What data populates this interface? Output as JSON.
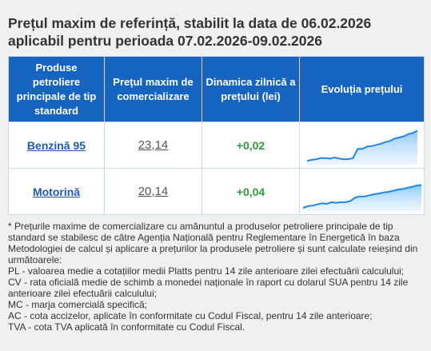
{
  "header": {
    "title_line1": "Prețul maxim de referință, stabilit la data de 06.02.2026",
    "title_line2": "aplicabil pentru perioada 07.02.2026-09.02.2026"
  },
  "table": {
    "columns": [
      "Produse petroliere principale de tip standard",
      "Prețul maxim de comercializare",
      "Dinamica zilnică a prețului (lei)",
      "Evoluția prețului"
    ],
    "rows": [
      {
        "product": "Benzină 95",
        "price": "23,14",
        "dynamic": "+0,02"
      },
      {
        "product": "Motorină",
        "price": "20,14",
        "dynamic": "+0,04"
      }
    ]
  },
  "colors": {
    "header_bg": "#1565c0",
    "positive": "#2e9d3a",
    "link": "#1f5aa8",
    "line": "#1e88e5"
  },
  "chart_data": [
    {
      "type": "area",
      "name": "Benzină 95",
      "values": [
        0.5,
        1.5,
        2,
        3,
        3,
        2.5,
        3.5,
        2.5,
        2,
        2,
        3,
        11,
        11,
        13,
        13.5,
        14.5,
        15.5,
        17,
        18,
        20,
        21,
        22,
        24,
        25,
        27
      ]
    },
    {
      "type": "area",
      "name": "Motorină",
      "values": [
        0,
        1.5,
        2,
        3,
        4,
        3.5,
        5,
        4.5,
        5,
        5,
        6,
        9,
        10,
        10,
        11,
        12,
        12.5,
        13.5,
        14,
        15,
        16,
        16.5,
        17.5,
        18.5,
        19.5,
        20
      ]
    }
  ],
  "notes": [
    "* Prețurile maxime de comercializare cu amănuntul a produselor petroliere principale de tip standard se stabilesc de către Agenția Națională pentru Reglementare în Energetică în baza Metodologiei de calcul și aplicare a prețurilor la produsele petroliere și sunt calculate reieșind din următoarele:",
    "PL - valoarea medie a cotațiilor medii Platts pentru 14 zile anterioare zilei efectuării calculului;",
    "CV - rata oficială medie de schimb a monedei naționale în raport cu dolarul SUA pentru 14 zile anterioare zilei efectuării calculului;",
    "MC - marja comercială specifică;",
    "AC - cota accizelor, aplicate în conformitate cu Codul Fiscal, pentru 14 zile anterioare;",
    "TVA - cota TVA aplicată în conformitate cu Codul Fiscal."
  ]
}
